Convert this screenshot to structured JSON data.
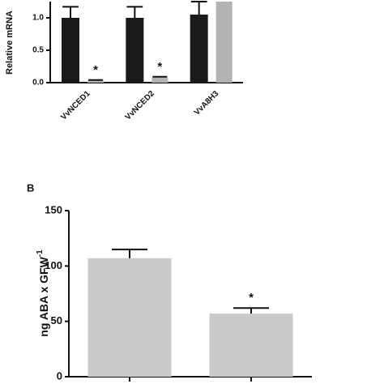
{
  "chart_data": [
    {
      "type": "bar",
      "y_label": "Relative mRNA",
      "categories": [
        "VvNCED1",
        "VvNCED2",
        "VvA8H3"
      ],
      "series": [
        {
          "color": "#1a1a1a",
          "values": [
            1.0,
            1.0,
            1.05
          ],
          "errors": [
            0.17,
            0.17,
            0.2
          ]
        },
        {
          "color": "#b3b3b3",
          "values": [
            0.03,
            0.08,
            1.25
          ],
          "errors": [
            0.01,
            0.01,
            0
          ]
        }
      ],
      "ylim": [
        0,
        1.25
      ],
      "yticks": [
        {
          "value": 0,
          "label": "0.0"
        },
        {
          "value": 0.5,
          "label": "0.5"
        },
        {
          "value": 1,
          "label": "1.0"
        }
      ],
      "annotations": [
        {
          "text": "*",
          "category": 0,
          "series": 1
        },
        {
          "text": "*",
          "category": 1,
          "series": 1
        }
      ]
    },
    {
      "type": "bar",
      "panel_label": "B",
      "y_label": "ng ABA x GFW",
      "y_label_superscript": "-1",
      "categories": [
        null,
        null
      ],
      "series": [
        {
          "color": "#c8cbc9",
          "values": [
            107,
            57
          ],
          "errors": [
            8,
            5
          ]
        }
      ],
      "ylim": [
        0,
        150
      ],
      "yticks": [
        0,
        50,
        100,
        150
      ],
      "annotations": [
        {
          "text": "*",
          "category": 1,
          "series": 0
        }
      ]
    }
  ]
}
